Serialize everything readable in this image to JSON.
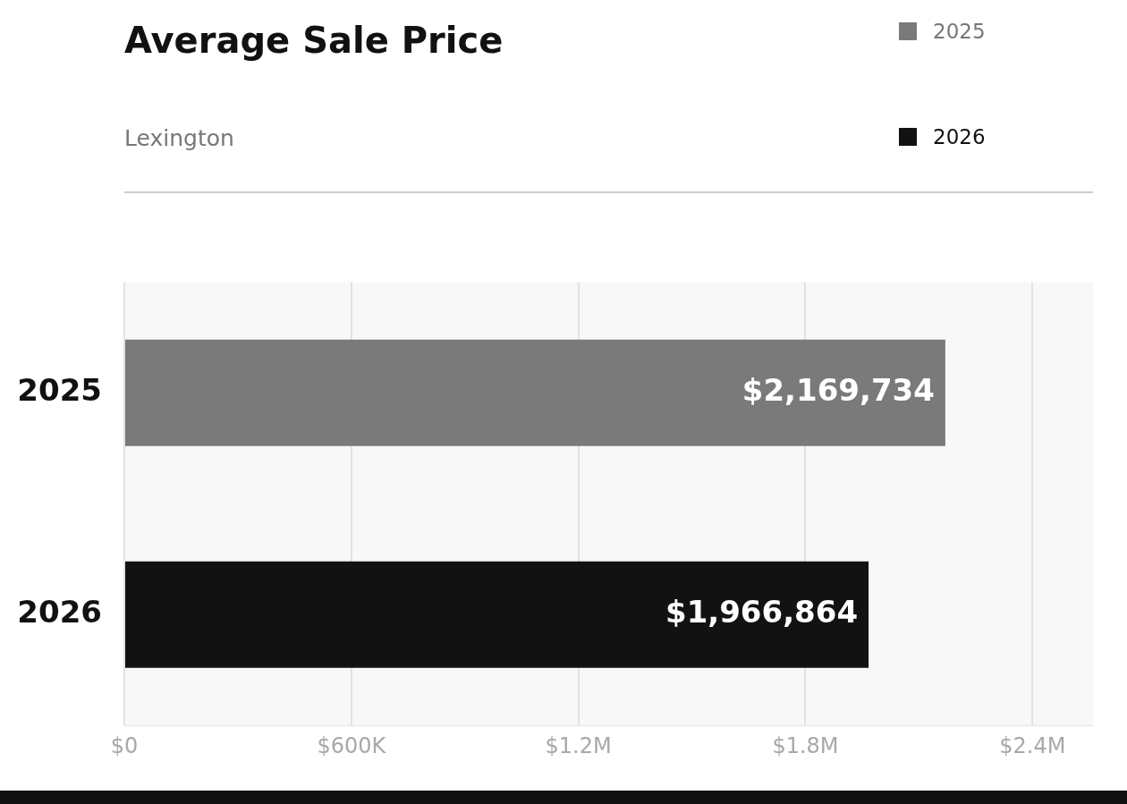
{
  "chart_data": {
    "type": "bar",
    "title": "Average Sale Price",
    "subtitle": "Lexington",
    "orientation": "horizontal",
    "categories": [
      "2025",
      "2026"
    ],
    "series": [
      {
        "name": "2025",
        "color": "#7a7a7a",
        "values": [
          2169734,
          null
        ],
        "value_labels": [
          "$2,169,734",
          null
        ]
      },
      {
        "name": "2026",
        "color": "#121212",
        "values": [
          null,
          1966864
        ],
        "value_labels": [
          null,
          "$1,966,864"
        ]
      }
    ],
    "xlim": [
      0,
      2560000
    ],
    "xticks": [
      {
        "value": 0,
        "label": "$0"
      },
      {
        "value": 600000,
        "label": "$600K"
      },
      {
        "value": 1200000,
        "label": "$1.2M"
      },
      {
        "value": 1800000,
        "label": "$1.8M"
      },
      {
        "value": 2400000,
        "label": "$2.4M"
      }
    ],
    "grid": "x",
    "legend": "top right"
  }
}
